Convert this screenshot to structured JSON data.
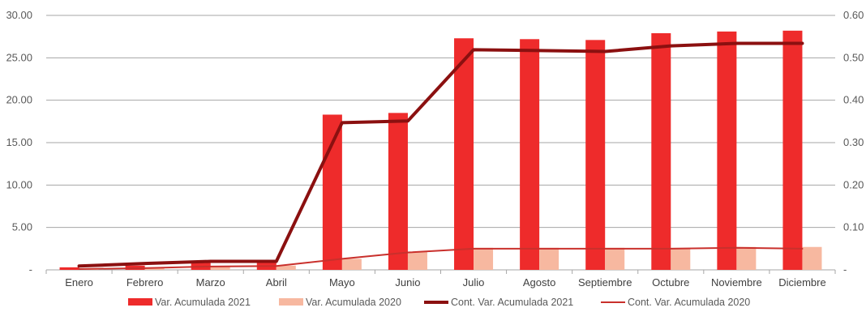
{
  "chart_data": {
    "type": "bar",
    "categories": [
      "Enero",
      "Febrero",
      "Marzo",
      "Abril",
      "Mayo",
      "Junio",
      "Julio",
      "Agosto",
      "Septiembre",
      "Octubre",
      "Noviembre",
      "Diciembre"
    ],
    "y_left": {
      "ticks": [
        "-",
        "5.00",
        "10.00",
        "15.00",
        "20.00",
        "25.00",
        "30.00"
      ],
      "range": [
        0,
        30
      ]
    },
    "y_right": {
      "ticks": [
        "-",
        "0.10",
        "0.20",
        "0.30",
        "0.40",
        "0.50",
        "0.60"
      ],
      "range": [
        0,
        0.6
      ]
    },
    "grid": true,
    "legend_position": "bottom",
    "series": [
      {
        "name": "Var. Acumulada 2021",
        "kind": "bar",
        "axis": "left",
        "color": "#ee2b2b",
        "values": [
          0.3,
          0.5,
          0.9,
          0.9,
          18.3,
          18.5,
          27.3,
          27.2,
          27.1,
          27.9,
          28.1,
          28.2
        ]
      },
      {
        "name": "Var. Acumulada 2020",
        "kind": "bar",
        "axis": "left",
        "color": "#f7b8a0",
        "values": [
          0.2,
          0.3,
          0.4,
          0.5,
          1.3,
          2.1,
          2.6,
          2.6,
          2.6,
          2.6,
          2.7,
          2.7
        ]
      },
      {
        "name": "Cont. Var. Acumulada 2021",
        "kind": "line",
        "axis": "right",
        "color": "#8b1010",
        "width": 4,
        "values": [
          0.009,
          0.015,
          0.02,
          0.02,
          0.347,
          0.351,
          0.519,
          0.517,
          0.515,
          0.528,
          0.534,
          0.534
        ]
      },
      {
        "name": "Cont. Var. Acumulada 2020",
        "kind": "line",
        "axis": "right",
        "color": "#c9302c",
        "width": 2,
        "values": [
          0.002,
          0.004,
          0.008,
          0.009,
          0.026,
          0.041,
          0.05,
          0.05,
          0.05,
          0.05,
          0.052,
          0.05
        ]
      }
    ]
  }
}
